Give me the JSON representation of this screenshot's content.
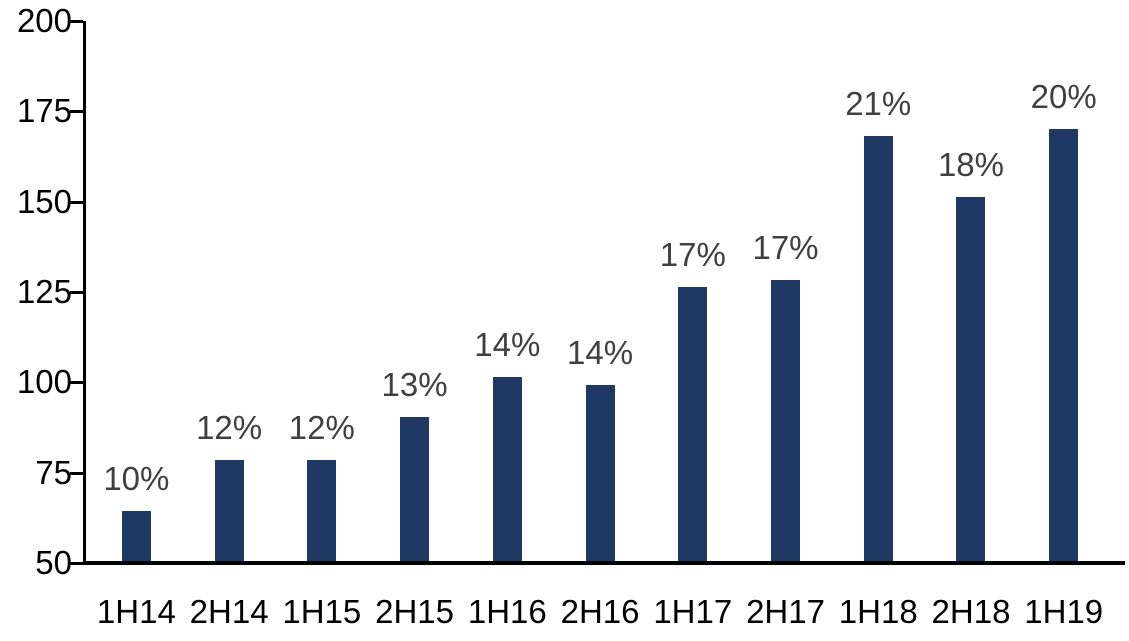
{
  "chart_data": {
    "type": "bar",
    "title": "",
    "xlabel": "",
    "ylabel": "",
    "categories": [
      "1H14",
      "2H14",
      "1H15",
      "2H15",
      "1H16",
      "2H16",
      "1H17",
      "2H17",
      "1H18",
      "2H18",
      "1H19"
    ],
    "values": [
      64,
      78,
      78,
      90,
      101,
      99,
      126,
      128,
      168,
      151,
      170
    ],
    "bar_labels": [
      "10%",
      "12%",
      "12%",
      "13%",
      "14%",
      "14%",
      "17%",
      "17%",
      "21%",
      "18%",
      "20%"
    ],
    "ylim": [
      50,
      200
    ],
    "yticks": [
      50,
      75,
      100,
      125,
      150,
      175,
      200
    ],
    "grid": false,
    "legend": "none",
    "colors": {
      "bar": "#1F3864",
      "value_label": "#404040",
      "axis": "#000000",
      "background": "#FFFFFF"
    }
  }
}
